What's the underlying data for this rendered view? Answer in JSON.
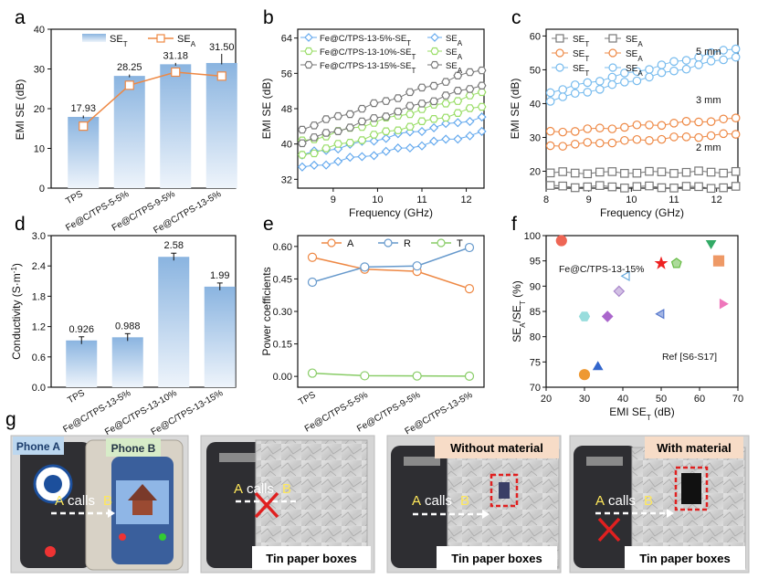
{
  "panel_letters": [
    "a",
    "b",
    "c",
    "d",
    "e",
    "f",
    "g"
  ],
  "chart_data": [
    {
      "id": "a",
      "type": "bar",
      "ylabel": "EMI SE (dB)",
      "ylim": [
        0,
        40
      ],
      "yticks": [
        0,
        10,
        20,
        30,
        40
      ],
      "categories": [
        "TPS",
        "Fe@C/TPS-5-5%",
        "Fe@C/TPS-9-5%",
        "Fe@C/TPS-13-5%"
      ],
      "series": [
        {
          "name": "SE",
          "sub": "T",
          "kind": "bar",
          "values": [
            17.93,
            28.25,
            31.18,
            31.5
          ]
        },
        {
          "name": "SE",
          "sub": "A",
          "kind": "line-square",
          "values": [
            15.6,
            25.9,
            29.2,
            28.2
          ]
        }
      ],
      "value_labels": [
        "17.93",
        "28.25",
        "31.18",
        "31.50"
      ]
    },
    {
      "id": "b",
      "type": "line",
      "xlabel": "Frequency (GHz)",
      "ylabel": "EMI SE (dB)",
      "xlim": [
        8.2,
        12.4
      ],
      "ylim": [
        30,
        66
      ],
      "xticks": [
        8,
        9,
        10,
        11,
        12
      ],
      "yticks": [
        32,
        40,
        48,
        56,
        64
      ],
      "series": [
        {
          "name": "Fe@C/TPS-13-5%-SE",
          "sub": "T",
          "color": "#66aaee",
          "marker": "diamond",
          "start": 37.5,
          "end": 46
        },
        {
          "name": "SE",
          "sub": "A",
          "color": "#66aaee",
          "marker": "diamond",
          "start": 34.5,
          "end": 42.5
        },
        {
          "name": "Fe@C/TPS-13-10%-SE",
          "sub": "T",
          "color": "#99dd66",
          "marker": "hexagon",
          "start": 40.5,
          "end": 51.5
        },
        {
          "name": "SE",
          "sub": "A",
          "color": "#99dd66",
          "marker": "hexagon",
          "start": 37.5,
          "end": 48.5
        },
        {
          "name": "Fe@C/TPS-13-15%-SE",
          "sub": "T",
          "color": "#777777",
          "marker": "hexagon",
          "start": 43.5,
          "end": 57
        },
        {
          "name": "SE",
          "sub": "A",
          "color": "#777777",
          "marker": "hexagon",
          "start": 40.5,
          "end": 53.5
        }
      ]
    },
    {
      "id": "c",
      "type": "line",
      "xlabel": "Frequency (GHz)",
      "ylabel": "EMI SE (dB)",
      "xlim": [
        8.0,
        12.5
      ],
      "ylim": [
        15,
        62
      ],
      "xticks": [
        8,
        9,
        10,
        11,
        12
      ],
      "yticks": [
        20,
        30,
        40,
        50,
        60
      ],
      "annotations": [
        "5 mm",
        "3 mm",
        "2 mm"
      ],
      "series": [
        {
          "name": "SE",
          "sub": "T",
          "color": "#777777",
          "marker": "square",
          "start": 19.5,
          "end": 19.8,
          "group": "2 mm"
        },
        {
          "name": "SE",
          "sub": "A",
          "color": "#777777",
          "marker": "square",
          "start": 15.5,
          "end": 15.2,
          "group": "2 mm"
        },
        {
          "name": "SE",
          "sub": "T",
          "color": "#ee8844",
          "marker": "circle",
          "start": 31.5,
          "end": 35.5,
          "group": "3 mm"
        },
        {
          "name": "SE",
          "sub": "A",
          "color": "#ee8844",
          "marker": "circle",
          "start": 27.5,
          "end": 31,
          "group": "3 mm"
        },
        {
          "name": "SE",
          "sub": "T",
          "color": "#77bbee",
          "marker": "circle",
          "start": 43.5,
          "end": 56.5,
          "group": "5 mm"
        },
        {
          "name": "SE",
          "sub": "A",
          "color": "#77bbee",
          "marker": "circle",
          "start": 41,
          "end": 54,
          "group": "5 mm"
        }
      ]
    },
    {
      "id": "d",
      "type": "bar",
      "ylabel": "Conductivity (S·m",
      "ylabel_sup": "-1",
      "ylabel_end": ")",
      "ylim": [
        0,
        3.0
      ],
      "yticks": [
        "0.0",
        "0.6",
        "1.2",
        "1.8",
        "2.4",
        "3.0"
      ],
      "categories": [
        "TPS",
        "Fe@C/TPS-13-5%",
        "Fe@C/TPS-13-10%",
        "Fe@C/TPS-13-15%"
      ],
      "values": [
        0.926,
        0.988,
        2.58,
        1.99
      ],
      "value_labels": [
        "0.926",
        "0.988",
        "2.58",
        "1.99"
      ]
    },
    {
      "id": "e",
      "type": "line",
      "ylabel": "Power coefficients",
      "ylim": [
        -0.05,
        0.65
      ],
      "yticks": [
        "0.00",
        "0.15",
        "0.30",
        "0.45",
        "0.60"
      ],
      "categories": [
        "TPS",
        "Fe@C/TPS-5-5%",
        "Fe@C/TPS-9-5%",
        "Fe@C/TPS-13-5%"
      ],
      "series": [
        {
          "name": "A",
          "color": "#ee8844",
          "values": [
            0.55,
            0.495,
            0.485,
            0.405
          ]
        },
        {
          "name": "R",
          "color": "#6699cc",
          "values": [
            0.435,
            0.505,
            0.51,
            0.595
          ]
        },
        {
          "name": "T",
          "color": "#88cc66",
          "values": [
            0.015,
            0.003,
            0.002,
            0.001
          ]
        }
      ]
    },
    {
      "id": "f",
      "type": "scatter",
      "xlabel": "EMI SE",
      "xlabel_sub": "T",
      "xlabel_end": " (dB)",
      "ylabel": "SE",
      "ylabel_mid": "/SE",
      "ylabel_end": " (%)",
      "xlim": [
        20,
        70
      ],
      "ylim": [
        70,
        100
      ],
      "xticks": [
        20,
        30,
        40,
        50,
        60,
        70
      ],
      "yticks": [
        70,
        75,
        80,
        85,
        90,
        95,
        100
      ],
      "annotation_this": "Fe@C/TPS-13-15%",
      "annotation_ref": "Ref [S6-S17]",
      "points": [
        {
          "x": 24,
          "y": 99,
          "shape": "circle",
          "color": "#ee6655"
        },
        {
          "x": 30,
          "y": 72.5,
          "shape": "circle",
          "color": "#ee9933"
        },
        {
          "x": 30,
          "y": 84,
          "shape": "hexagon",
          "color": "#99dddd"
        },
        {
          "x": 33.5,
          "y": 74,
          "shape": "triangle",
          "color": "#3366cc"
        },
        {
          "x": 36,
          "y": 84,
          "shape": "diamond",
          "color": "#aa66cc"
        },
        {
          "x": 39,
          "y": 89,
          "shape": "diamond-half",
          "color": "#aa88cc"
        },
        {
          "x": 41,
          "y": 92,
          "shape": "tri-left",
          "color": "#66aadd"
        },
        {
          "x": 50,
          "y": 84.5,
          "shape": "tri-left-half",
          "color": "#5577cc"
        },
        {
          "x": 50,
          "y": 94.5,
          "shape": "star",
          "color": "#ee2222"
        },
        {
          "x": 54,
          "y": 94.5,
          "shape": "pentagon-half",
          "color": "#66bb44"
        },
        {
          "x": 63,
          "y": 98.5,
          "shape": "tri-down",
          "color": "#33aa66"
        },
        {
          "x": 65,
          "y": 95,
          "shape": "square",
          "color": "#ee9966"
        },
        {
          "x": 66,
          "y": 86.5,
          "shape": "tri-right",
          "color": "#ee77bb"
        }
      ]
    }
  ],
  "photos": {
    "phone_a": "Phone A",
    "phone_b": "Phone B",
    "call_a": "A",
    "call_word": "calls",
    "call_b": "B",
    "without": "Without material",
    "with": "With material",
    "tin": "Tin paper boxes"
  }
}
